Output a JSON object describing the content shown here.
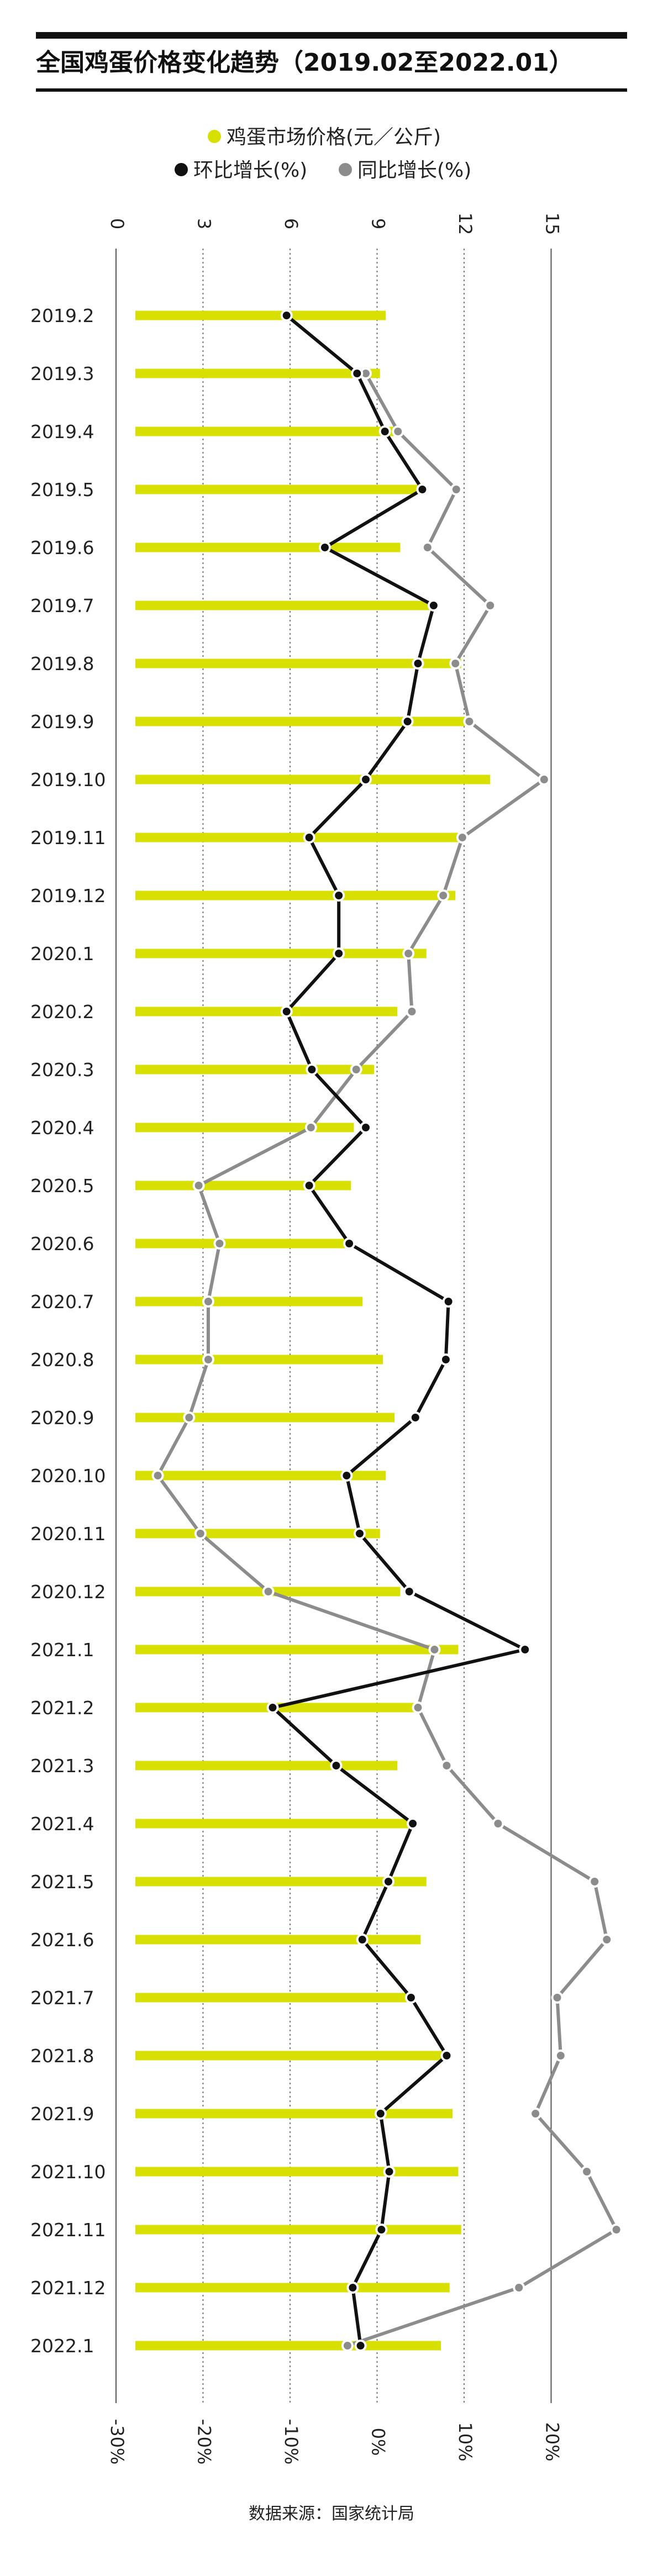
{
  "title": "全国鸡蛋价格变化趋势（2019.02至2022.01）",
  "source": "数据来源：国家统计局",
  "legend": {
    "price": "鸡蛋市场价格(元／公斤)",
    "mom": "环比增长(%)",
    "yoy": "同比增长(%)"
  },
  "colors": {
    "bar": "#d7e000",
    "mom": "#111111",
    "yoy": "#8c8c8c",
    "grid": "#555555",
    "title_rule": "#111111"
  },
  "chart_data": {
    "type": "bar",
    "orientation": "horizontal",
    "categories": [
      "2019.2",
      "2019.3",
      "2019.4",
      "2019.5",
      "2019.6",
      "2019.7",
      "2019.8",
      "2019.9",
      "2019.10",
      "2019.11",
      "2019.12",
      "2020.1",
      "2020.2",
      "2020.3",
      "2020.4",
      "2020.5",
      "2020.6",
      "2020.7",
      "2020.8",
      "2020.9",
      "2020.10",
      "2020.11",
      "2020.12",
      "2021.1",
      "2021.2",
      "2021.3",
      "2021.4",
      "2021.5",
      "2021.6",
      "2021.7",
      "2021.8",
      "2021.9",
      "2021.10",
      "2021.11",
      "2021.12",
      "2022.1"
    ],
    "price_axis": {
      "label": "鸡蛋市场价格(元／公斤)",
      "range": [
        0,
        15
      ],
      "ticks": [
        "0",
        "3",
        "6",
        "9",
        "12",
        "15"
      ],
      "position": "top"
    },
    "pct_axis": {
      "range": [
        -30,
        20
      ],
      "ticks": [
        "-30%",
        "-20%",
        "-10%",
        "0%",
        "10%",
        "20%"
      ],
      "position": "bottom"
    },
    "series": [
      {
        "name": "鸡蛋市场价格(元／公斤)",
        "type": "bar",
        "values": [
          9.3,
          9.1,
          9.6,
          10.5,
          9.8,
          10.9,
          11.9,
          12.2,
          12.9,
          11.9,
          11.7,
          10.7,
          9.7,
          8.9,
          8.2,
          8.1,
          8.1,
          8.5,
          9.2,
          9.6,
          9.3,
          9.1,
          9.8,
          11.8,
          10.3,
          9.7,
          10.3,
          10.7,
          10.5,
          10.3,
          11.5,
          11.6,
          11.8,
          11.9,
          11.5,
          11.2
        ]
      },
      {
        "name": "环比增长(%)",
        "type": "line",
        "values": [
          -10.4,
          -2.3,
          0.9,
          5.2,
          -6.0,
          6.5,
          4.7,
          3.5,
          -1.3,
          -7.8,
          -4.4,
          -4.4,
          -10.4,
          -7.5,
          -1.3,
          -7.8,
          -3.2,
          8.2,
          7.9,
          4.4,
          -3.5,
          -2.0,
          3.7,
          17.0,
          -12.0,
          -4.7,
          4.1,
          1.3,
          -1.7,
          3.9,
          8.0,
          0.4,
          1.4,
          0.5,
          -2.8,
          -1.9
        ]
      },
      {
        "name": "同比增长(%)",
        "type": "line",
        "values": [
          null,
          -1.3,
          2.4,
          9.1,
          5.8,
          13.0,
          9.0,
          10.6,
          19.2,
          9.8,
          7.6,
          3.6,
          4.0,
          -2.4,
          -7.6,
          -20.5,
          -18.1,
          -19.4,
          -19.4,
          -21.6,
          -25.2,
          -20.3,
          -12.5,
          6.6,
          4.7,
          8.0,
          13.9,
          25.0,
          26.4,
          20.7,
          21.1,
          18.2,
          24.1,
          27.5,
          16.3,
          -3.4
        ]
      }
    ],
    "grid": true,
    "legend_position": "top-center"
  }
}
